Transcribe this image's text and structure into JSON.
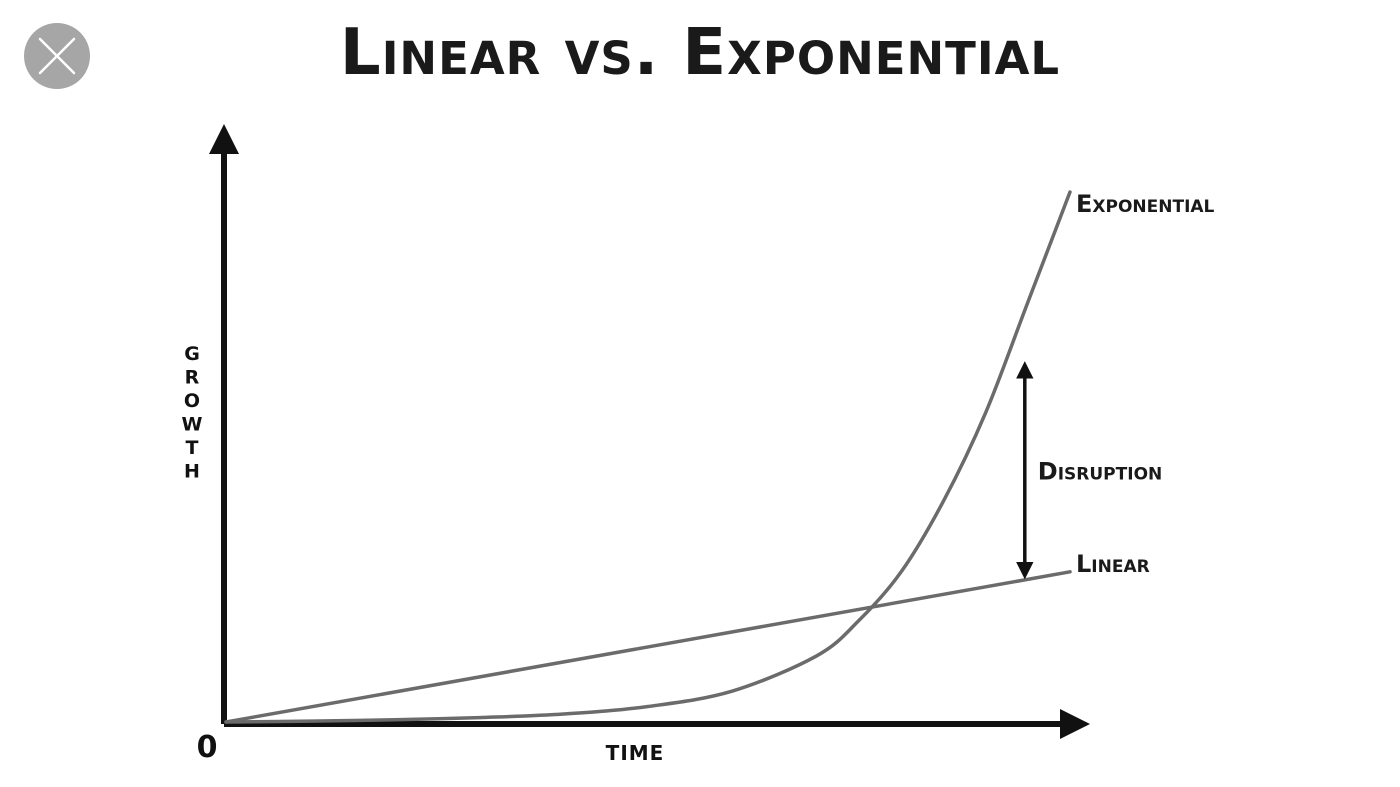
{
  "title": "Linear vs. Exponential",
  "close_icon": "close-icon",
  "chart_data": {
    "type": "line",
    "title": "Linear vs. Exponential",
    "xlabel": "TIME",
    "ylabel": "GROWTH",
    "origin_label": "0",
    "xlim": [
      0,
      10
    ],
    "ylim": [
      0,
      12
    ],
    "grid": false,
    "series": [
      {
        "name": "Exponential",
        "x": [
          0,
          1,
          2,
          3,
          4,
          5,
          6,
          7,
          7.5,
          8,
          8.5,
          9,
          9.5,
          10
        ],
        "values": [
          0,
          0.02,
          0.05,
          0.1,
          0.18,
          0.35,
          0.7,
          1.5,
          2.3,
          3.4,
          5.0,
          7.0,
          9.5,
          12.0
        ],
        "color": "#6b6b6b"
      },
      {
        "name": "Linear",
        "x": [
          0,
          10
        ],
        "values": [
          0,
          3.4
        ],
        "color": "#6b6b6b"
      }
    ],
    "annotations": [
      {
        "text": "Disruption",
        "type": "double-arrow",
        "x": 9.5,
        "y_from": 3.4,
        "y_to": 8.0
      }
    ]
  }
}
